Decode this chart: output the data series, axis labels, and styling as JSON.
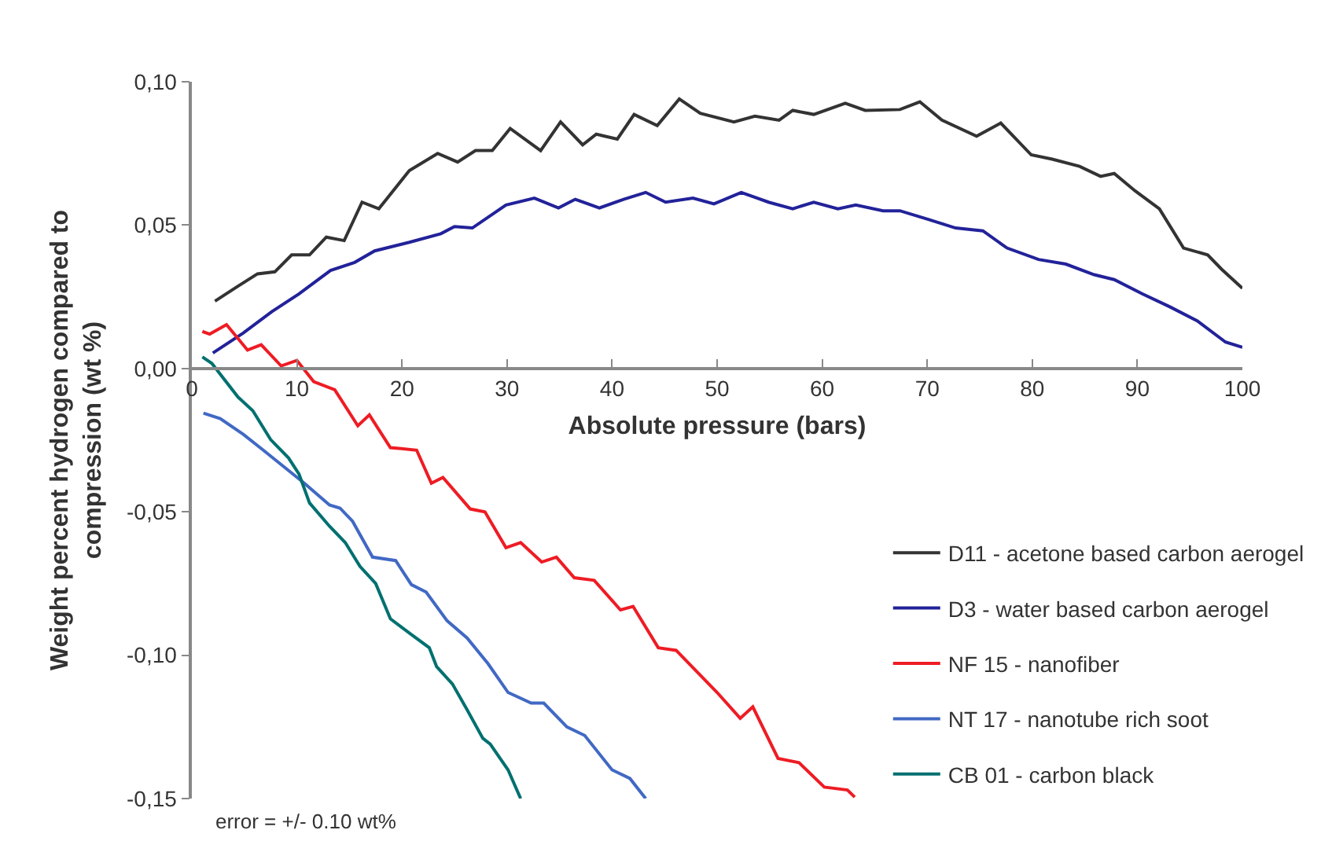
{
  "chart_data": {
    "type": "line",
    "xlabel": "Absolute pressure (bars)",
    "ylabel": "Weight percent hydrogen compared to compression (wt %)",
    "xlim": [
      0,
      100
    ],
    "xticks": [
      0,
      10,
      20,
      30,
      40,
      50,
      60,
      70,
      80,
      90,
      100
    ],
    "ylim": [
      -0.15,
      0.1
    ],
    "yticks": [
      {
        "value": -0.15,
        "label": "-0,15"
      },
      {
        "value": -0.1,
        "label": "-0,10"
      },
      {
        "value": -0.05,
        "label": "-0,05"
      },
      {
        "value": 0,
        "label": "0,00"
      },
      {
        "value": 0.05,
        "label": "0,05"
      },
      {
        "value": 0.1,
        "label": "0,10"
      }
    ],
    "grid": false,
    "legend": "bottom right",
    "marker": "none",
    "line_style": "solid",
    "annotations": [
      "error = +/- 0.10 wt%"
    ],
    "series": [
      {
        "name": "D11 - acetone based carbon aerogel",
        "color": "#333333",
        "x": [
          2.2,
          4.3,
          6.25,
          7.9,
          9.5,
          11.2,
          12.8,
          14.5,
          16.2,
          17.8,
          20.7,
          23.4,
          25.3,
          27,
          28.6,
          30.3,
          33.2,
          35.1,
          37.2,
          38.5,
          40.5,
          42.1,
          44.3,
          46.4,
          48.4,
          51.6,
          53.6,
          55.9,
          57.2,
          59.2,
          62.2,
          64.1,
          67.4,
          69.3,
          71.4,
          74.7,
          77,
          79.9,
          81.9,
          84.5,
          86.5,
          87.8,
          89.8,
          92.1,
          94.4,
          96.7,
          98,
          100
        ],
        "values": [
          0.0235,
          0.0285,
          0.033,
          0.0337,
          0.0396,
          0.0396,
          0.0458,
          0.0446,
          0.058,
          0.0557,
          0.069,
          0.075,
          0.072,
          0.076,
          0.076,
          0.0837,
          0.076,
          0.086,
          0.078,
          0.0817,
          0.08,
          0.0886,
          0.0847,
          0.094,
          0.089,
          0.086,
          0.088,
          0.0866,
          0.09,
          0.0886,
          0.0925,
          0.09,
          0.0903,
          0.093,
          0.0866,
          0.081,
          0.0856,
          0.0745,
          0.073,
          0.0705,
          0.067,
          0.068,
          0.0619,
          0.0557,
          0.042,
          0.0396,
          0.0347,
          0.028
        ]
      },
      {
        "name": "D3 - water based carbon aerogel",
        "color": "#22229a",
        "x": [
          2,
          4.9,
          7.6,
          10.2,
          13.2,
          15.5,
          17.4,
          20.7,
          23.7,
          25,
          26.7,
          29.9,
          32.6,
          34.9,
          36.5,
          38.8,
          41.1,
          43.2,
          45.1,
          47.7,
          49.7,
          52.3,
          54.9,
          57.2,
          59.2,
          61.5,
          63.2,
          65.8,
          67.4,
          70.1,
          72.7,
          75.3,
          77.6,
          80.6,
          83.2,
          85.9,
          87.8,
          90.5,
          93.1,
          95.7,
          98.4,
          100
        ],
        "values": [
          0.0054,
          0.0124,
          0.0198,
          0.026,
          0.0342,
          0.037,
          0.041,
          0.044,
          0.047,
          0.0495,
          0.049,
          0.057,
          0.0594,
          0.056,
          0.059,
          0.056,
          0.059,
          0.0614,
          0.058,
          0.0594,
          0.0574,
          0.0614,
          0.058,
          0.0557,
          0.058,
          0.0557,
          0.057,
          0.055,
          0.055,
          0.052,
          0.049,
          0.048,
          0.042,
          0.038,
          0.0364,
          0.0327,
          0.031,
          0.026,
          0.0215,
          0.0166,
          0.0092,
          0.0074
        ]
      },
      {
        "name": "NF 15 - nanofiber",
        "color": "#ee1c24",
        "x": [
          1,
          1.7,
          3.3,
          5.3,
          6.6,
          8.5,
          10,
          11.6,
          13.6,
          15.8,
          16.9,
          18.9,
          21.4,
          22.8,
          23.9,
          26.5,
          27.9,
          29.9,
          31.3,
          33.3,
          34.7,
          36.4,
          38.3,
          40.8,
          42,
          44.4,
          46.1,
          50,
          52.2,
          53.4,
          55.8,
          57.8,
          60.2,
          62.4,
          63.1
        ],
        "values": [
          0.0129,
          0.012,
          0.0153,
          0.0064,
          0.0083,
          0.0009,
          0.0028,
          -0.0046,
          -0.0074,
          -0.02,
          -0.0162,
          -0.0276,
          -0.0285,
          -0.04,
          -0.038,
          -0.049,
          -0.05,
          -0.0625,
          -0.0607,
          -0.0675,
          -0.0658,
          -0.073,
          -0.0739,
          -0.0842,
          -0.083,
          -0.0974,
          -0.0983,
          -0.113,
          -0.122,
          -0.118,
          -0.136,
          -0.1375,
          -0.146,
          -0.147,
          -0.1495
        ]
      },
      {
        "name": "NT 17 - nanotube rich soot",
        "color": "#4169c4",
        "x": [
          1.1,
          2.7,
          4.9,
          6.8,
          10.7,
          13.1,
          14.1,
          15.3,
          17.2,
          19.4,
          20.9,
          22.3,
          24.3,
          26.2,
          28.2,
          30.1,
          32.3,
          33.5,
          35.7,
          37.4,
          40,
          41.7,
          43.2
        ],
        "values": [
          -0.0156,
          -0.0175,
          -0.023,
          -0.0285,
          -0.04,
          -0.0476,
          -0.0487,
          -0.0533,
          -0.0658,
          -0.067,
          -0.0754,
          -0.078,
          -0.088,
          -0.094,
          -0.103,
          -0.113,
          -0.1167,
          -0.1167,
          -0.125,
          -0.128,
          -0.14,
          -0.143,
          -0.15
        ]
      },
      {
        "name": "CB 01 - carbon black",
        "color": "#007070",
        "x": [
          1,
          1.9,
          4.4,
          5.8,
          7.5,
          9.2,
          10.2,
          11.2,
          13.1,
          14.6,
          16,
          17.5,
          18.9,
          20.9,
          22.6,
          23.3,
          24.8,
          26.2,
          27.7,
          28.4,
          30.1,
          31.3
        ],
        "values": [
          0.004,
          0.0018,
          -0.01,
          -0.0147,
          -0.0248,
          -0.0312,
          -0.0368,
          -0.0469,
          -0.055,
          -0.0607,
          -0.069,
          -0.075,
          -0.0873,
          -0.0928,
          -0.0974,
          -0.104,
          -0.11,
          -0.119,
          -0.129,
          -0.131,
          -0.14,
          -0.15
        ]
      }
    ]
  }
}
